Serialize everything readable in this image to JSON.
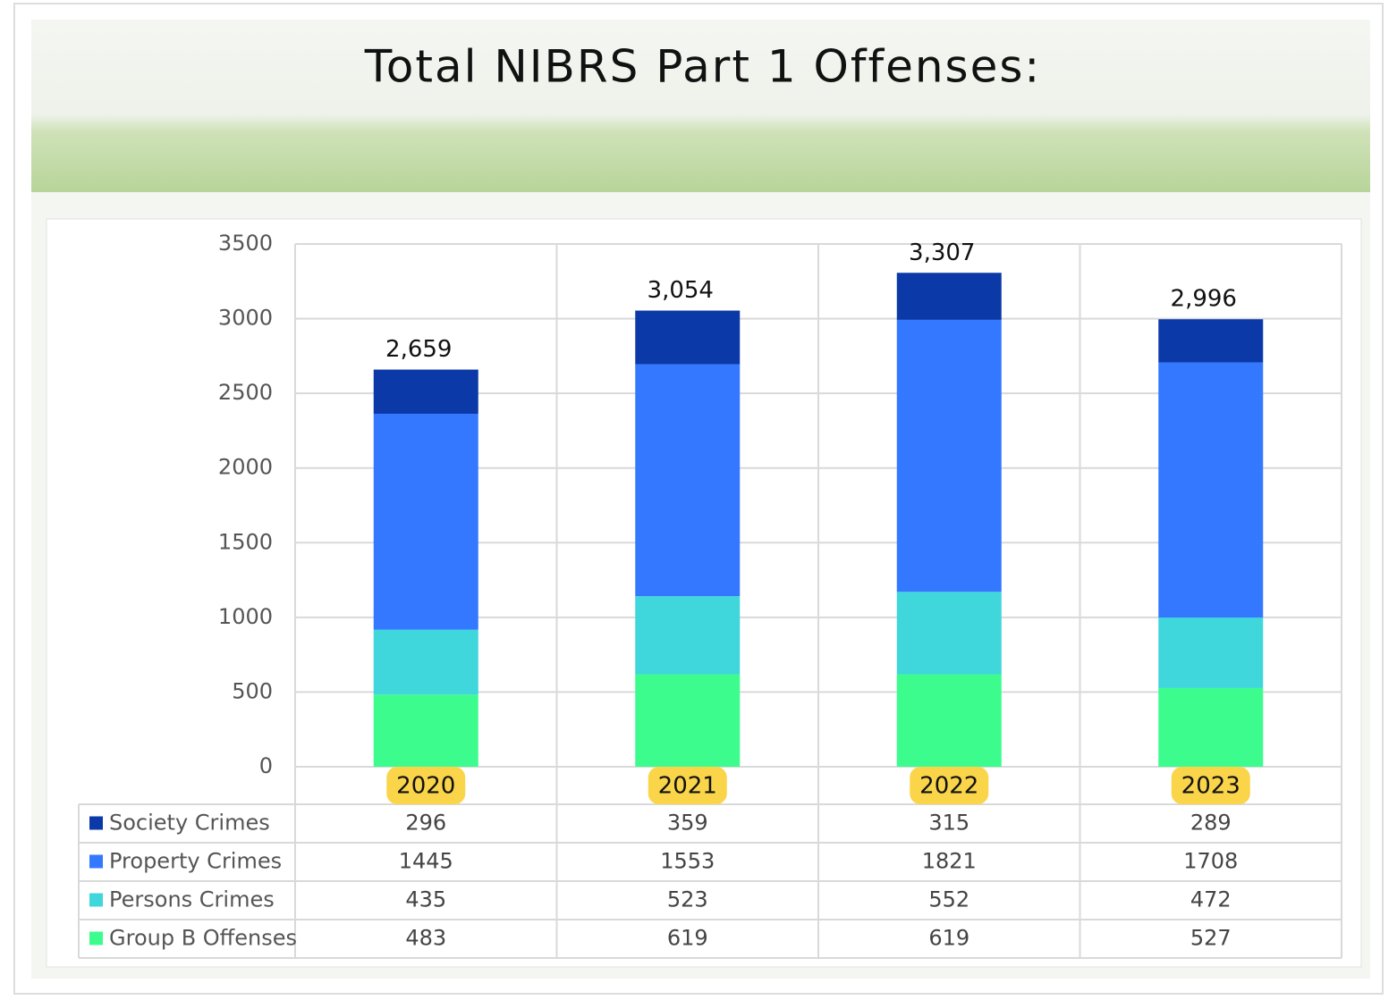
{
  "chart_data": {
    "type": "stacked_bar",
    "title": "Total NIBRS Part 1 Offenses:",
    "categories": [
      "2020",
      "2021",
      "2022",
      "2023"
    ],
    "series": [
      {
        "name": "Society Crimes",
        "color": "#0b3aa8",
        "values": [
          296,
          359,
          315,
          289
        ]
      },
      {
        "name": "Property Crimes",
        "color": "#3478ff",
        "values": [
          1445,
          1553,
          1821,
          1708
        ]
      },
      {
        "name": "Persons Crimes",
        "color": "#3fd6dc",
        "values": [
          435,
          523,
          552,
          472
        ]
      },
      {
        "name": "Group B Offenses",
        "color": "#3dfc8e",
        "values": [
          483,
          619,
          619,
          527
        ]
      }
    ],
    "totals": {
      "values": [
        2659,
        3054,
        3307,
        2996
      ],
      "value_labels": [
        "2,659",
        "3,054",
        "3,307",
        "2,996"
      ]
    },
    "ylim": [
      0,
      3500
    ],
    "yticks": [
      0,
      500,
      1000,
      1500,
      2000,
      2500,
      3000,
      3500
    ],
    "grid": true
  }
}
